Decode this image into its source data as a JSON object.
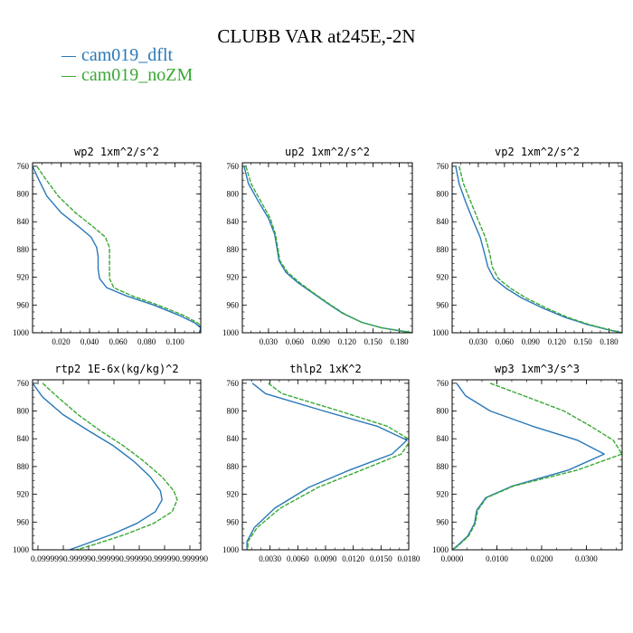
{
  "title": "CLUBB VAR at245E,-2N",
  "legend": [
    {
      "name": "cam019_dflt",
      "color": "#2878b8"
    },
    {
      "name": "cam019_noZM",
      "color": "#3aa935"
    }
  ],
  "chart_data": [
    {
      "type": "line",
      "title": "wp2  1xm^2/s^2",
      "ylim": [
        1000,
        755
      ],
      "yticks": [
        760,
        800,
        840,
        880,
        920,
        960,
        1000
      ],
      "xlim": [
        0.0,
        0.118
      ],
      "xticks": [
        0.02,
        0.04,
        0.06,
        0.08,
        0.1
      ],
      "xtick_labels": [
        "0.020",
        "0.040",
        "0.060",
        "0.080",
        "0.100"
      ],
      "series": [
        {
          "name": "cam019_dflt",
          "points": [
            [
              0.0,
              760
            ],
            [
              0.004,
              778
            ],
            [
              0.01,
              803
            ],
            [
              0.02,
              827
            ],
            [
              0.033,
              848
            ],
            [
              0.041,
              862
            ],
            [
              0.045,
              877
            ],
            [
              0.046,
              890
            ],
            [
              0.046,
              908
            ],
            [
              0.047,
              922
            ],
            [
              0.052,
              935
            ],
            [
              0.066,
              947
            ],
            [
              0.085,
              960
            ],
            [
              0.103,
              975
            ],
            [
              0.114,
              986
            ],
            [
              0.118,
              993
            ],
            [
              0.117,
              1000
            ]
          ]
        },
        {
          "name": "cam019_noZM",
          "points": [
            [
              0.003,
              760
            ],
            [
              0.009,
              778
            ],
            [
              0.018,
              803
            ],
            [
              0.03,
              827
            ],
            [
              0.043,
              848
            ],
            [
              0.051,
              862
            ],
            [
              0.054,
              877
            ],
            [
              0.054,
              890
            ],
            [
              0.054,
              908
            ],
            [
              0.054,
              922
            ],
            [
              0.057,
              935
            ],
            [
              0.07,
              947
            ],
            [
              0.088,
              960
            ],
            [
              0.106,
              975
            ],
            [
              0.116,
              986
            ],
            [
              0.119,
              993
            ],
            [
              0.118,
              1000
            ]
          ]
        }
      ]
    },
    {
      "type": "line",
      "title": "up2  1xm^2/s^2",
      "ylim": [
        1000,
        755
      ],
      "yticks": [
        760,
        800,
        840,
        880,
        920,
        960,
        1000
      ],
      "xlim": [
        0.0,
        0.195
      ],
      "xticks": [
        0.03,
        0.06,
        0.09,
        0.12,
        0.15,
        0.18
      ],
      "xtick_labels": [
        "0.030",
        "0.060",
        "0.090",
        "0.120",
        "0.150",
        "0.180"
      ],
      "series": [
        {
          "name": "cam019_dflt",
          "points": [
            [
              0.002,
              760
            ],
            [
              0.007,
              785
            ],
            [
              0.018,
              810
            ],
            [
              0.03,
              835
            ],
            [
              0.037,
              858
            ],
            [
              0.04,
              880
            ],
            [
              0.042,
              896
            ],
            [
              0.05,
              913
            ],
            [
              0.064,
              928
            ],
            [
              0.08,
              942
            ],
            [
              0.097,
              957
            ],
            [
              0.115,
              972
            ],
            [
              0.137,
              985
            ],
            [
              0.16,
              993
            ],
            [
              0.185,
              998
            ],
            [
              0.195,
              1000
            ]
          ]
        },
        {
          "name": "cam019_noZM",
          "points": [
            [
              0.004,
              760
            ],
            [
              0.01,
              785
            ],
            [
              0.021,
              810
            ],
            [
              0.032,
              835
            ],
            [
              0.038,
              858
            ],
            [
              0.041,
              880
            ],
            [
              0.043,
              896
            ],
            [
              0.052,
              913
            ],
            [
              0.066,
              928
            ],
            [
              0.081,
              942
            ],
            [
              0.098,
              957
            ],
            [
              0.116,
              972
            ],
            [
              0.137,
              985
            ],
            [
              0.16,
              993
            ],
            [
              0.186,
              998
            ],
            [
              0.196,
              1000
            ]
          ]
        }
      ]
    },
    {
      "type": "line",
      "title": "vp2  1xm^2/s^2",
      "ylim": [
        1000,
        755
      ],
      "yticks": [
        760,
        800,
        840,
        880,
        920,
        960,
        1000
      ],
      "xlim": [
        0.0,
        0.195
      ],
      "xticks": [
        0.03,
        0.06,
        0.09,
        0.12,
        0.15,
        0.18
      ],
      "xtick_labels": [
        "0.030",
        "0.060",
        "0.090",
        "0.120",
        "0.150",
        "0.180"
      ],
      "series": [
        {
          "name": "cam019_dflt",
          "points": [
            [
              0.004,
              760
            ],
            [
              0.008,
              785
            ],
            [
              0.015,
              810
            ],
            [
              0.024,
              838
            ],
            [
              0.032,
              862
            ],
            [
              0.037,
              885
            ],
            [
              0.041,
              905
            ],
            [
              0.048,
              922
            ],
            [
              0.062,
              936
            ],
            [
              0.08,
              950
            ],
            [
              0.105,
              965
            ],
            [
              0.13,
              978
            ],
            [
              0.155,
              988
            ],
            [
              0.18,
              996
            ],
            [
              0.195,
              1000
            ]
          ]
        },
        {
          "name": "cam019_noZM",
          "points": [
            [
              0.008,
              760
            ],
            [
              0.013,
              785
            ],
            [
              0.021,
              810
            ],
            [
              0.03,
              838
            ],
            [
              0.038,
              862
            ],
            [
              0.043,
              885
            ],
            [
              0.046,
              905
            ],
            [
              0.053,
              922
            ],
            [
              0.067,
              936
            ],
            [
              0.085,
              950
            ],
            [
              0.109,
              965
            ],
            [
              0.133,
              978
            ],
            [
              0.157,
              988
            ],
            [
              0.181,
              996
            ],
            [
              0.196,
              1000
            ]
          ]
        }
      ]
    },
    {
      "type": "line",
      "title": "rtp2  1E-6x(kg/kg)^2",
      "ylim": [
        1000,
        755
      ],
      "yticks": [
        760,
        800,
        840,
        880,
        920,
        960,
        1000
      ],
      "xlim": [
        0.0,
        1.0
      ],
      "xtick_labels": [
        "0.0999990.999990.999990.999990.999990.999990"
      ],
      "series": [
        {
          "name": "cam019_dflt",
          "points": [
            [
              0.0,
              760
            ],
            [
              0.06,
              780
            ],
            [
              0.18,
              805
            ],
            [
              0.33,
              828
            ],
            [
              0.48,
              850
            ],
            [
              0.6,
              872
            ],
            [
              0.7,
              895
            ],
            [
              0.76,
              915
            ],
            [
              0.77,
              928
            ],
            [
              0.73,
              945
            ],
            [
              0.62,
              962
            ],
            [
              0.47,
              978
            ],
            [
              0.3,
              993
            ],
            [
              0.22,
              1000
            ]
          ]
        },
        {
          "name": "cam019_noZM",
          "points": [
            [
              0.06,
              760
            ],
            [
              0.15,
              780
            ],
            [
              0.27,
              805
            ],
            [
              0.4,
              828
            ],
            [
              0.54,
              850
            ],
            [
              0.66,
              872
            ],
            [
              0.77,
              895
            ],
            [
              0.84,
              915
            ],
            [
              0.86,
              928
            ],
            [
              0.83,
              945
            ],
            [
              0.72,
              962
            ],
            [
              0.55,
              978
            ],
            [
              0.36,
              993
            ],
            [
              0.26,
              1000
            ]
          ]
        }
      ]
    },
    {
      "type": "line",
      "title": "thlp2  1xK^2",
      "ylim": [
        1000,
        755
      ],
      "yticks": [
        760,
        800,
        840,
        880,
        920,
        960,
        1000
      ],
      "xlim": [
        0.0,
        0.018
      ],
      "xticks": [
        0.003,
        0.006,
        0.009,
        0.012,
        0.015,
        0.018
      ],
      "xtick_labels": [
        "0.0030",
        "0.0060",
        "0.0090",
        "0.0120",
        "0.0150",
        "0.0180"
      ],
      "series": [
        {
          "name": "cam019_dflt",
          "points": [
            [
              0.0011,
              760
            ],
            [
              0.0025,
              775
            ],
            [
              0.0088,
              800
            ],
            [
              0.0146,
              822
            ],
            [
              0.0178,
              842
            ],
            [
              0.0162,
              862
            ],
            [
              0.0116,
              885
            ],
            [
              0.0072,
              910
            ],
            [
              0.0035,
              940
            ],
            [
              0.0013,
              968
            ],
            [
              0.0005,
              988
            ],
            [
              0.0005,
              1000
            ]
          ]
        },
        {
          "name": "cam019_noZM",
          "points": [
            [
              0.0028,
              760
            ],
            [
              0.0043,
              775
            ],
            [
              0.0105,
              800
            ],
            [
              0.0157,
              822
            ],
            [
              0.0182,
              842
            ],
            [
              0.0172,
              862
            ],
            [
              0.0129,
              885
            ],
            [
              0.0082,
              910
            ],
            [
              0.0041,
              940
            ],
            [
              0.0016,
              968
            ],
            [
              0.0006,
              988
            ],
            [
              0.0006,
              1000
            ]
          ]
        }
      ]
    },
    {
      "type": "line",
      "title": "wp3  1xm^3/s^3",
      "ylim": [
        1000,
        755
      ],
      "yticks": [
        760,
        800,
        840,
        880,
        920,
        960,
        1000
      ],
      "xlim": [
        0.0,
        0.038
      ],
      "xticks": [
        0.0,
        0.01,
        0.02,
        0.03
      ],
      "xtick_labels": [
        "0.0000",
        "0.0100",
        "0.0200",
        "0.0300"
      ],
      "series": [
        {
          "name": "cam019_dflt",
          "points": [
            [
              0.001,
              760
            ],
            [
              0.003,
              778
            ],
            [
              0.0085,
              800
            ],
            [
              0.018,
              822
            ],
            [
              0.028,
              842
            ],
            [
              0.034,
              862
            ],
            [
              0.026,
              885
            ],
            [
              0.0135,
              908
            ],
            [
              0.0075,
              925
            ],
            [
              0.0055,
              943
            ],
            [
              0.005,
              962
            ],
            [
              0.0035,
              980
            ],
            [
              0.001,
              995
            ],
            [
              0.0,
              1000
            ]
          ]
        },
        {
          "name": "cam019_noZM",
          "points": [
            [
              0.0085,
              760
            ],
            [
              0.016,
              778
            ],
            [
              0.025,
              800
            ],
            [
              0.031,
              822
            ],
            [
              0.036,
              842
            ],
            [
              0.038,
              862
            ],
            [
              0.028,
              885
            ],
            [
              0.0138,
              908
            ],
            [
              0.0077,
              925
            ],
            [
              0.0057,
              943
            ],
            [
              0.0052,
              962
            ],
            [
              0.0037,
              980
            ],
            [
              0.0012,
              995
            ],
            [
              0.0,
              1000
            ]
          ]
        }
      ]
    }
  ]
}
